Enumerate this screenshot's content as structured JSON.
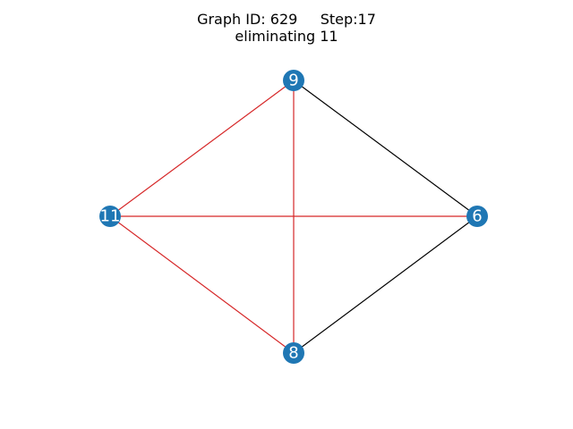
{
  "title": {
    "line1": "Graph ID: 629     Step:17",
    "line2": "eliminating 11"
  },
  "colors": {
    "node_fill": "#1f77b4",
    "node_label": "#ffffff",
    "edge_default": "#000000",
    "edge_highlight": "#d62728"
  },
  "nodes": [
    {
      "id": "9",
      "label": "9"
    },
    {
      "id": "11",
      "label": "11"
    },
    {
      "id": "6",
      "label": "6"
    },
    {
      "id": "8",
      "label": "8"
    }
  ],
  "edges": [
    {
      "source": "9",
      "target": "6",
      "highlighted": false
    },
    {
      "source": "6",
      "target": "8",
      "highlighted": false
    },
    {
      "source": "11",
      "target": "9",
      "highlighted": true
    },
    {
      "source": "11",
      "target": "6",
      "highlighted": true
    },
    {
      "source": "11",
      "target": "8",
      "highlighted": true
    },
    {
      "source": "9",
      "target": "8",
      "highlighted": true
    }
  ]
}
